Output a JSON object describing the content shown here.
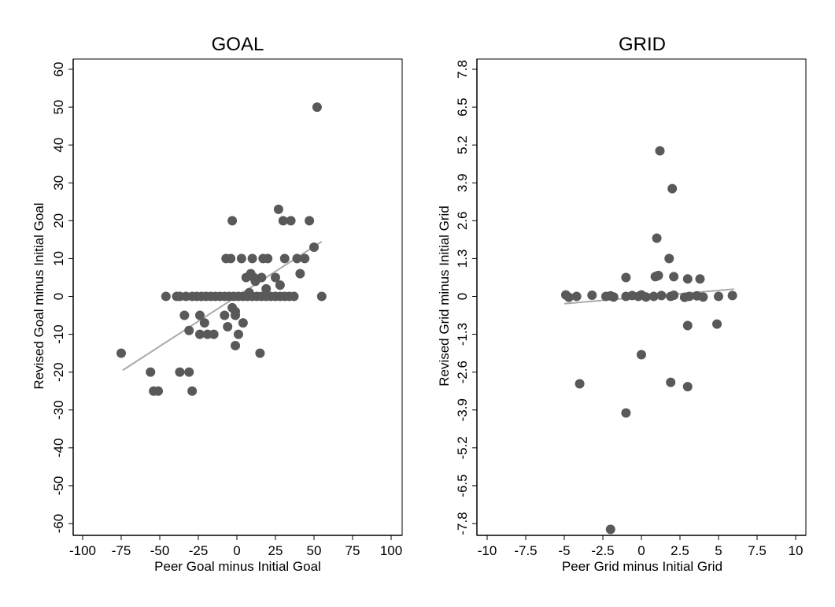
{
  "chart_data": [
    {
      "type": "scatter",
      "title": "GOAL",
      "xlabel": "Peer Goal minus Initial Goal",
      "ylabel": "Revised Goal minus Initial Goal",
      "xlim": [
        -100,
        100
      ],
      "ylim": [
        -60,
        60
      ],
      "xticks": [
        "-100",
        "-75",
        "-50",
        "-25",
        "0",
        "25",
        "50",
        "75",
        "100"
      ],
      "yticks": [
        "-60",
        "-50",
        "-40",
        "-30",
        "-20",
        "-10",
        "0",
        "10",
        "20",
        "30",
        "40",
        "50",
        "60"
      ],
      "grid": false,
      "legend": "none",
      "marker_color": "#595959",
      "line_color": "#aaaaaa",
      "fit_line": {
        "x": [
          -74,
          55
        ],
        "y": [
          -19.5,
          14.5
        ]
      },
      "points": [
        [
          52,
          50
        ],
        [
          27,
          23
        ],
        [
          -3,
          20
        ],
        [
          30,
          20
        ],
        [
          35,
          20
        ],
        [
          47,
          20
        ],
        [
          50,
          13
        ],
        [
          -7,
          10
        ],
        [
          -4,
          10
        ],
        [
          3,
          10
        ],
        [
          10,
          10
        ],
        [
          17,
          10
        ],
        [
          20,
          10
        ],
        [
          31,
          10
        ],
        [
          39,
          10
        ],
        [
          44,
          10
        ],
        [
          41,
          6
        ],
        [
          9,
          6
        ],
        [
          11,
          5
        ],
        [
          16,
          5
        ],
        [
          6,
          5
        ],
        [
          25,
          5
        ],
        [
          28,
          3
        ],
        [
          12,
          4
        ],
        [
          19,
          2
        ],
        [
          8,
          1
        ],
        [
          -46,
          0
        ],
        [
          -39,
          0
        ],
        [
          -37,
          0
        ],
        [
          -33,
          0
        ],
        [
          -29,
          0
        ],
        [
          -26,
          0
        ],
        [
          -23,
          0
        ],
        [
          -20,
          0
        ],
        [
          -17,
          0
        ],
        [
          -14,
          0
        ],
        [
          -11,
          0
        ],
        [
          -8,
          0
        ],
        [
          -5,
          0
        ],
        [
          -2,
          0
        ],
        [
          1,
          0
        ],
        [
          4,
          0
        ],
        [
          7,
          0
        ],
        [
          10,
          0
        ],
        [
          13,
          0
        ],
        [
          16,
          0
        ],
        [
          19,
          0
        ],
        [
          22,
          0
        ],
        [
          25,
          0
        ],
        [
          28,
          0
        ],
        [
          31,
          0
        ],
        [
          34,
          0
        ],
        [
          37,
          0
        ],
        [
          55,
          0
        ],
        [
          -3,
          -3
        ],
        [
          -1,
          -4
        ],
        [
          -34,
          -5
        ],
        [
          -24,
          -5
        ],
        [
          -8,
          -5
        ],
        [
          -1,
          -5
        ],
        [
          4,
          -7
        ],
        [
          -21,
          -7
        ],
        [
          -6,
          -8
        ],
        [
          -31,
          -9
        ],
        [
          -24,
          -10
        ],
        [
          -19,
          -10
        ],
        [
          -15,
          -10
        ],
        [
          1,
          -10
        ],
        [
          -1,
          -13
        ],
        [
          15,
          -15
        ],
        [
          -75,
          -15
        ],
        [
          -56,
          -20
        ],
        [
          -37,
          -20
        ],
        [
          -31,
          -20
        ],
        [
          -54,
          -25
        ],
        [
          -51,
          -25
        ],
        [
          -29,
          -25
        ]
      ]
    },
    {
      "type": "scatter",
      "title": "GRID",
      "xlabel": "Peer Grid minus Initial Grid",
      "ylabel": "Revised Grid minus Initial Grid",
      "xlim": [
        -10,
        10
      ],
      "ylim": [
        -7.8,
        7.8
      ],
      "xticks": [
        "-10",
        "-7.5",
        "-5",
        "-2.5",
        "0",
        "2.5",
        "5",
        "7.5",
        "10"
      ],
      "yticks": [
        "-7.8",
        "-6.5",
        "-5.2",
        "-3.9",
        "-2.6",
        "-1.3",
        "0",
        "1.3",
        "2.6",
        "3.9",
        "5.2",
        "6.5",
        "7.8"
      ],
      "grid": false,
      "legend": "none",
      "marker_color": "#595959",
      "line_color": "#aaaaaa",
      "fit_line": {
        "x": [
          -5,
          6
        ],
        "y": [
          -0.25,
          0.25
        ]
      },
      "points": [
        [
          1.2,
          5.0
        ],
        [
          2.0,
          3.7
        ],
        [
          1.0,
          2.0
        ],
        [
          1.8,
          1.3
        ],
        [
          -1.0,
          0.65
        ],
        [
          0.9,
          0.68
        ],
        [
          1.0,
          0.7
        ],
        [
          1.1,
          0.72
        ],
        [
          2.1,
          0.68
        ],
        [
          3.0,
          0.6
        ],
        [
          3.8,
          0.6
        ],
        [
          -4.9,
          0.05
        ],
        [
          -4.7,
          -0.03
        ],
        [
          -4.2,
          0.0
        ],
        [
          -3.2,
          0.04
        ],
        [
          -2.3,
          0.0
        ],
        [
          -2.0,
          0.02
        ],
        [
          -1.8,
          -0.02
        ],
        [
          -1.0,
          0.0
        ],
        [
          -0.6,
          0.03
        ],
        [
          -0.2,
          0.0
        ],
        [
          0.0,
          0.05
        ],
        [
          0.3,
          -0.02
        ],
        [
          0.8,
          0.0
        ],
        [
          1.3,
          0.03
        ],
        [
          1.9,
          0.0
        ],
        [
          2.1,
          0.04
        ],
        [
          2.8,
          -0.03
        ],
        [
          3.1,
          0.0
        ],
        [
          3.6,
          0.02
        ],
        [
          4.0,
          -0.02
        ],
        [
          5.0,
          0.0
        ],
        [
          5.9,
          0.03
        ],
        [
          3.0,
          -1.0
        ],
        [
          4.9,
          -0.95
        ],
        [
          0.0,
          -2.0
        ],
        [
          -4.0,
          -3.0
        ],
        [
          1.9,
          -2.95
        ],
        [
          3.0,
          -3.1
        ],
        [
          -1.0,
          -4.0
        ],
        [
          -2.0,
          -8.0
        ]
      ]
    }
  ]
}
